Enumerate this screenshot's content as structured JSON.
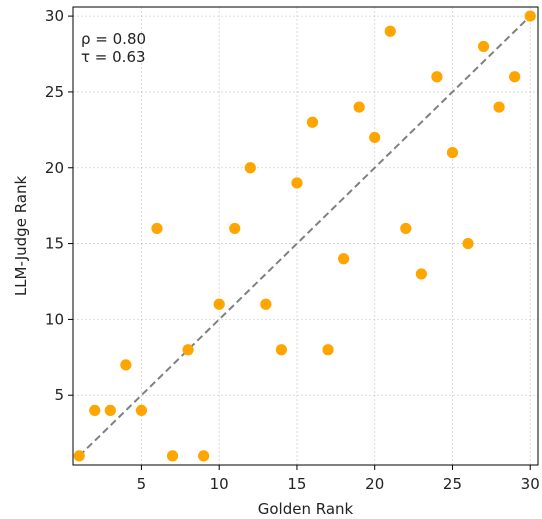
{
  "chart_data": {
    "type": "scatter",
    "xlabel": "Golden Rank",
    "ylabel": "LLM-Judge Rank",
    "xlim": [
      0.6,
      30.5
    ],
    "ylim": [
      0.4,
      30.6
    ],
    "xticks": [
      5,
      10,
      15,
      20,
      25,
      30
    ],
    "yticks": [
      5,
      10,
      15,
      20,
      25,
      30
    ],
    "grid": true,
    "reference_line": {
      "from": [
        1,
        1
      ],
      "to": [
        30,
        30
      ],
      "style": "dashed",
      "color": "#808080"
    },
    "annotations": [
      "ρ = 0.80",
      "τ = 0.63"
    ],
    "annotation_placement": "top-left",
    "marker_color": "#FFA500",
    "points": [
      {
        "x": 1,
        "y": 1
      },
      {
        "x": 2,
        "y": 4
      },
      {
        "x": 3,
        "y": 4
      },
      {
        "x": 4,
        "y": 7
      },
      {
        "x": 5,
        "y": 4
      },
      {
        "x": 6,
        "y": 16
      },
      {
        "x": 7,
        "y": 1
      },
      {
        "x": 8,
        "y": 8
      },
      {
        "x": 9,
        "y": 1
      },
      {
        "x": 10,
        "y": 11
      },
      {
        "x": 11,
        "y": 16
      },
      {
        "x": 12,
        "y": 20
      },
      {
        "x": 13,
        "y": 11
      },
      {
        "x": 14,
        "y": 8
      },
      {
        "x": 15,
        "y": 19
      },
      {
        "x": 16,
        "y": 23
      },
      {
        "x": 17,
        "y": 8
      },
      {
        "x": 18,
        "y": 14
      },
      {
        "x": 19,
        "y": 24
      },
      {
        "x": 20,
        "y": 22
      },
      {
        "x": 21,
        "y": 29
      },
      {
        "x": 22,
        "y": 16
      },
      {
        "x": 23,
        "y": 13
      },
      {
        "x": 24,
        "y": 26
      },
      {
        "x": 25,
        "y": 21
      },
      {
        "x": 26,
        "y": 15
      },
      {
        "x": 27,
        "y": 28
      },
      {
        "x": 28,
        "y": 24
      },
      {
        "x": 29,
        "y": 26
      },
      {
        "x": 30,
        "y": 30
      }
    ]
  }
}
